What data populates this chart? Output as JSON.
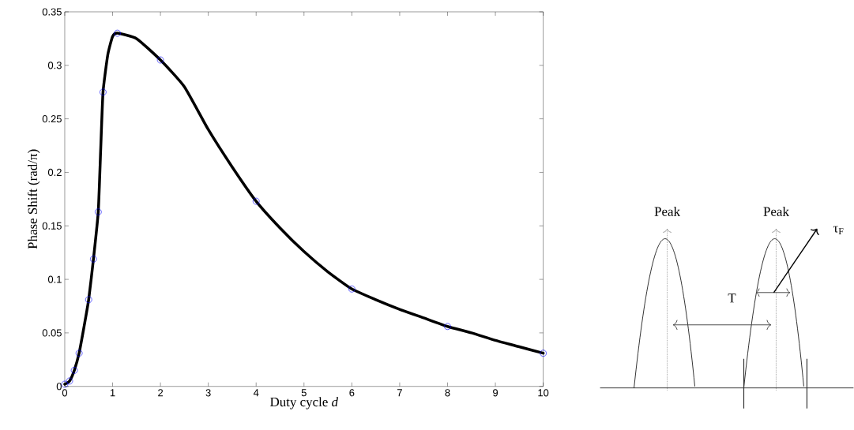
{
  "chart_data": [
    {
      "type": "line",
      "xlabel": "Duty cycle *d*",
      "ylabel": "Phase Shift (rad/π)",
      "xlim": [
        0,
        10
      ],
      "ylim": [
        0,
        0.35
      ],
      "xticks": [
        0,
        1,
        2,
        3,
        4,
        5,
        6,
        7,
        8,
        9,
        10
      ],
      "yticks": [
        0,
        0.05,
        0.1,
        0.15,
        0.2,
        0.25,
        0.3,
        0.35
      ],
      "series": [
        {
          "type": "line",
          "color": "#000000",
          "marker": "none",
          "line_style": "solid",
          "x": [
            0,
            0.1,
            0.2,
            0.3,
            0.4,
            0.5,
            0.6,
            0.7,
            0.75,
            0.8,
            0.9,
            1.0,
            1.1,
            1.5,
            2,
            2.5,
            3,
            3.5,
            4,
            4.5,
            5,
            5.5,
            6,
            6.5,
            7,
            7.5,
            8,
            8.5,
            9,
            9.5,
            10
          ],
          "values": [
            0.002,
            0.005,
            0.015,
            0.031,
            0.055,
            0.081,
            0.119,
            0.163,
            0.22,
            0.275,
            0.31,
            0.327,
            0.33,
            0.325,
            0.305,
            0.28,
            0.24,
            0.205,
            0.173,
            0.148,
            0.126,
            0.107,
            0.091,
            0.081,
            0.072,
            0.064,
            0.056,
            0.05,
            0.043,
            0.037,
            0.031
          ]
        },
        {
          "type": "scatter",
          "color": "#0000ff",
          "marker": "circle",
          "x": [
            0,
            0.1,
            0.2,
            0.3,
            0.5,
            0.6,
            0.7,
            0.8,
            1.1,
            2,
            4,
            6,
            8,
            10
          ],
          "values": [
            0.002,
            0.005,
            0.015,
            0.031,
            0.081,
            0.119,
            0.163,
            0.275,
            0.33,
            0.305,
            0.173,
            0.091,
            0.056,
            0.031
          ]
        }
      ]
    },
    {
      "type": "other",
      "annotations": [
        "Peak",
        "Peak",
        "T",
        "τ$_{F}$"
      ]
    }
  ]
}
